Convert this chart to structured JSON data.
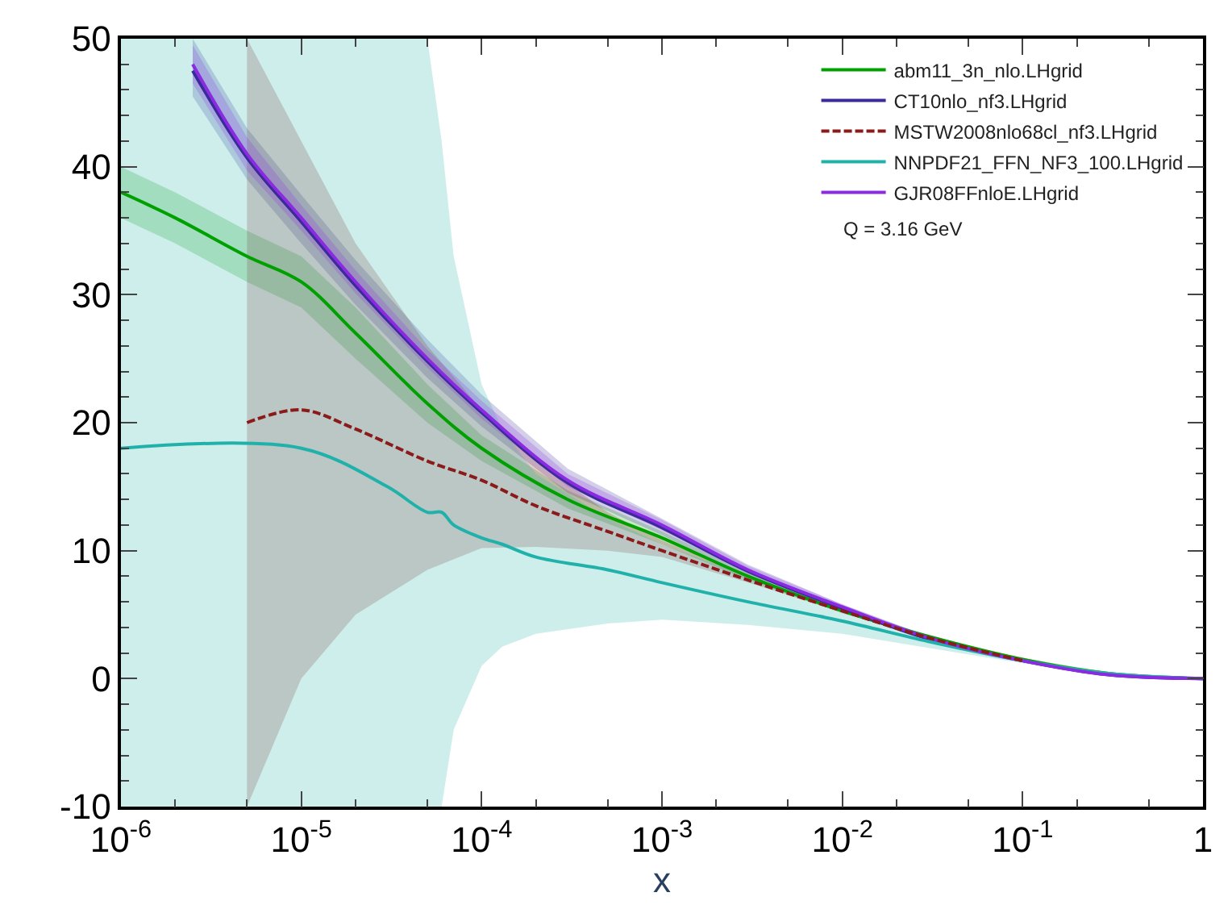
{
  "chart_data": {
    "type": "line",
    "xlabel": "x",
    "log": "x",
    "legend": "top right",
    "marker": "none",
    "xlim": [
      1e-06,
      1
    ],
    "xticks": [
      {
        "value": 1e-06,
        "label": "10$^{-6}$"
      },
      {
        "value": 1e-05,
        "label": "10$^{-5}$"
      },
      {
        "value": 0.0001,
        "label": "10$^{-4}$"
      },
      {
        "value": 0.001,
        "label": "10$^{-3}$"
      },
      {
        "value": 0.01,
        "label": "10$^{-2}$"
      },
      {
        "value": 0.1,
        "label": "10$^{-1}$"
      },
      1
    ],
    "ylim": [
      -10,
      50
    ],
    "yticks": [
      -10,
      0,
      10,
      20,
      30,
      40,
      50
    ],
    "annotations": [
      "Q = 3.16 GeV"
    ],
    "series": [
      {
        "name": "abm11_3n_nlo.LHgrid",
        "color": "#00a000",
        "line_style": "solid",
        "x": [
          1e-06,
          2e-06,
          5e-06,
          1e-05,
          2e-05,
          5e-05,
          0.0001,
          0.0003,
          0.001,
          0.003,
          0.01,
          0.03,
          0.1,
          0.3,
          1
        ],
        "values": [
          38,
          36,
          33,
          31,
          27,
          21.5,
          18,
          14,
          11,
          8,
          5.3,
          3.3,
          1.5,
          0.4,
          0
        ],
        "lower": [
          36,
          34,
          31,
          29,
          25,
          20,
          17,
          13.3,
          10.5,
          7.7,
          5.1,
          3.2,
          1.4,
          0.4,
          0
        ],
        "upper": [
          40,
          38,
          35,
          33,
          29,
          23,
          19,
          14.7,
          11.5,
          8.3,
          5.5,
          3.4,
          1.6,
          0.5,
          0
        ]
      },
      {
        "name": "CT10nlo_nf3.LHgrid",
        "color": "#3a2a9a",
        "line_style": "solid",
        "x": [
          2.5e-06,
          5e-06,
          1e-05,
          2e-05,
          5e-05,
          0.0001,
          0.0003,
          0.001,
          0.003,
          0.01,
          0.03,
          0.1,
          0.3,
          1
        ],
        "values": [
          47.5,
          40.7,
          35.7,
          30.7,
          24.8,
          20.8,
          15.3,
          11.8,
          8.4,
          5.5,
          3.1,
          1.4,
          0.3,
          0
        ],
        "lower": [
          45.5,
          39,
          34,
          29.2,
          23.5,
          19.7,
          14.5,
          11.2,
          8,
          5.3,
          3,
          1.3,
          0.3,
          0
        ],
        "upper": [
          50,
          43,
          37.8,
          32.7,
          26.5,
          22.2,
          16.4,
          12.5,
          8.9,
          5.8,
          3.3,
          1.5,
          0.4,
          0
        ]
      },
      {
        "name": "MSTW2008nlo68cl_nf3.LHgrid",
        "color": "#8b1a1a",
        "line_style": "dashed",
        "x": [
          5e-06,
          1e-05,
          2e-05,
          5e-05,
          0.0001,
          0.0002,
          0.0005,
          0.001,
          0.003,
          0.01,
          0.03,
          0.1,
          0.3,
          1
        ],
        "values": [
          20,
          21,
          19.5,
          17,
          15.5,
          13.5,
          11.5,
          10,
          7.7,
          5.3,
          3.2,
          1.4,
          null,
          null
        ],
        "lower": [
          -10,
          0,
          5,
          8.5,
          10.2,
          10.3,
          10,
          9.5,
          7.5,
          5.2,
          3.1,
          1.3,
          0.3,
          0
        ],
        "upper": [
          50,
          42,
          34,
          26,
          21,
          17,
          13,
          10.8,
          8,
          5.4,
          3.2,
          1.4,
          0.4,
          0
        ]
      },
      {
        "name": "NNPDF21_FFN_NF3_100.LHgrid",
        "color": "#20b2aa",
        "line_style": "solid",
        "x": [
          1e-06,
          1e-05,
          3e-05,
          5e-05,
          6e-05,
          7e-05,
          0.0001,
          0.00013,
          0.0002,
          0.0005,
          0.001,
          0.003,
          0.01,
          0.03,
          0.1,
          0.3,
          1
        ],
        "values": [
          18,
          18,
          15,
          13,
          13,
          12,
          11,
          10.5,
          9.5,
          8.5,
          7.5,
          6,
          4.5,
          2.9,
          1.4,
          0.4,
          0
        ],
        "lower": [
          -10,
          -10,
          -10,
          -10,
          -10,
          -4,
          1,
          2.5,
          3.5,
          4.3,
          4.6,
          4.2,
          3.5,
          2.4,
          1.2,
          0.3,
          0
        ],
        "upper": [
          50,
          50,
          50,
          50,
          42,
          33,
          23,
          19.5,
          16,
          12.5,
          10.5,
          8,
          5.6,
          3.4,
          1.5,
          0.4,
          0
        ]
      },
      {
        "name": "GJR08FFnloE.LHgrid",
        "color": "#8a2be2",
        "line_style": "solid",
        "x": [
          2.5e-06,
          5e-06,
          1e-05,
          2e-05,
          5e-05,
          0.0001,
          0.0003,
          0.001,
          0.003,
          0.01,
          0.03,
          0.1,
          0.3,
          1
        ],
        "values": [
          48,
          41,
          36,
          31,
          25,
          21,
          15.5,
          12,
          8.5,
          5.6,
          3.2,
          1.4,
          0.3,
          0
        ],
        "lower": [
          46.5,
          39.7,
          35,
          30.1,
          24.3,
          20.3,
          15,
          11.6,
          8.2,
          5.4,
          3.1,
          1.35,
          0.3,
          0
        ],
        "upper": [
          49.5,
          42.3,
          37,
          31.9,
          25.7,
          21.7,
          16,
          12.4,
          8.8,
          5.8,
          3.3,
          1.45,
          0.35,
          0
        ]
      }
    ]
  }
}
